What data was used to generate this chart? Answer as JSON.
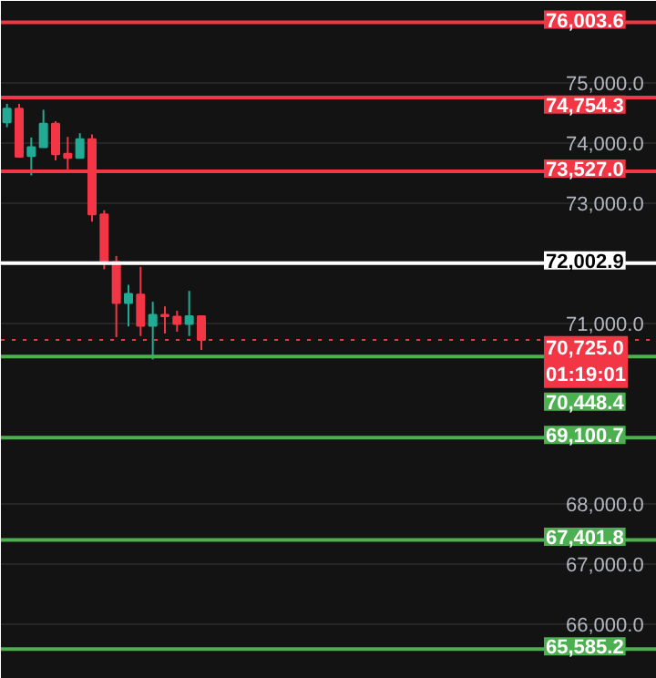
{
  "chart_data": {
    "type": "candlestick",
    "categories": [
      null,
      null,
      null,
      null,
      null,
      null,
      null,
      null,
      null,
      null,
      null,
      null,
      null,
      null,
      null,
      null,
      null,
      null,
      null,
      null,
      null,
      null,
      null,
      null,
      null,
      null,
      null,
      null,
      null,
      null,
      null,
      null,
      null,
      null,
      null,
      null,
      null,
      null,
      null,
      null,
      null,
      null,
      null,
      null,
      null,
      null,
      null,
      null,
      null,
      null,
      null,
      null,
      null,
      null
    ],
    "ohlc": [
      [
        74340,
        74650,
        74260,
        74570
      ],
      [
        74570,
        74650,
        73770,
        73770
      ],
      [
        73780,
        74090,
        73460,
        73930
      ],
      [
        73930,
        74550,
        73930,
        74320
      ],
      [
        74320,
        74360,
        73710,
        73810
      ],
      [
        73820,
        74100,
        73560,
        73750
      ],
      [
        73750,
        74160,
        73750,
        74060
      ],
      [
        74060,
        74140,
        72690,
        72810
      ],
      [
        72810,
        72880,
        71900,
        72020
      ],
      [
        72020,
        72120,
        70770,
        71340
      ],
      [
        71340,
        71640,
        70950,
        71490
      ],
      [
        71480,
        71940,
        70790,
        70960
      ],
      [
        70960,
        71360,
        70400,
        71140
      ],
      [
        71140,
        71280,
        70830,
        71120
      ],
      [
        71110,
        71210,
        70860,
        70990
      ],
      [
        70990,
        71540,
        70790,
        71120
      ],
      [
        71120,
        71120,
        70560,
        70725
      ],
      null,
      null,
      null,
      null,
      null,
      null,
      null,
      null,
      null,
      null,
      null,
      null,
      null,
      null,
      null,
      null,
      null,
      null,
      null,
      null,
      null,
      null,
      null,
      null,
      null,
      null,
      null,
      null,
      null,
      null,
      null,
      null,
      null,
      null,
      null,
      null,
      null
    ],
    "colors": [
      "#22ab94",
      "#f23645",
      "#22ab94",
      "#22ab94",
      "#f23645",
      "#f23645",
      "#22ab94",
      "#f23645",
      "#f23645",
      "#f23645",
      "#22ab94",
      "#f23645",
      "#22ab94",
      "#f23645",
      "#f23645",
      "#22ab94",
      "#f23645",
      null,
      null,
      null,
      null,
      null,
      null,
      null,
      null,
      null,
      null,
      null,
      null,
      null,
      null,
      null,
      null,
      null,
      null,
      null,
      null,
      null,
      null,
      null,
      null,
      null,
      null,
      null,
      null,
      null,
      null,
      null,
      null,
      null,
      null,
      null,
      null,
      null
    ],
    "ylim": [
      65090,
      76360
    ],
    "yticks": [
      {
        "value": 66000,
        "label": "66,000.0"
      },
      {
        "value": 67000,
        "label": "67,000.0"
      },
      {
        "value": 68000,
        "label": "68,000.0"
      },
      {
        "value": 71000,
        "label": "71,000.0"
      },
      {
        "value": 73000,
        "label": "73,000.0"
      },
      {
        "value": 74000,
        "label": "74,000.0"
      },
      {
        "value": 75000,
        "label": "75,000.0"
      }
    ],
    "grid": "y",
    "ref_lines": [
      {
        "axis": "y",
        "value": 76003.6,
        "label": "76,003.6",
        "color": "#f23645"
      },
      {
        "axis": "y",
        "value": 74754.3,
        "label": "74,754.3",
        "color": "#f23645"
      },
      {
        "axis": "y",
        "value": 73527.0,
        "label": "73,527.0",
        "color": "#f23645"
      },
      {
        "axis": "y",
        "value": 72002.9,
        "label": "72,002.9",
        "color": "#ffffff"
      },
      {
        "axis": "y",
        "value": 70725.0,
        "label": "70,725.0\n01:19:01",
        "color": "#f23645",
        "line_style": "dotted"
      },
      {
        "axis": "y",
        "value": 70448.4,
        "label": "70,448.4",
        "color": "#4caf50"
      },
      {
        "axis": "y",
        "value": 69100.7,
        "label": "69,100.7",
        "color": "#4caf50"
      },
      {
        "axis": "y",
        "value": 67401.8,
        "label": "67,401.8",
        "color": "#4caf50"
      },
      {
        "axis": "y",
        "value": 65585.2,
        "label": "65,585.2",
        "color": "#4caf50"
      }
    ]
  }
}
